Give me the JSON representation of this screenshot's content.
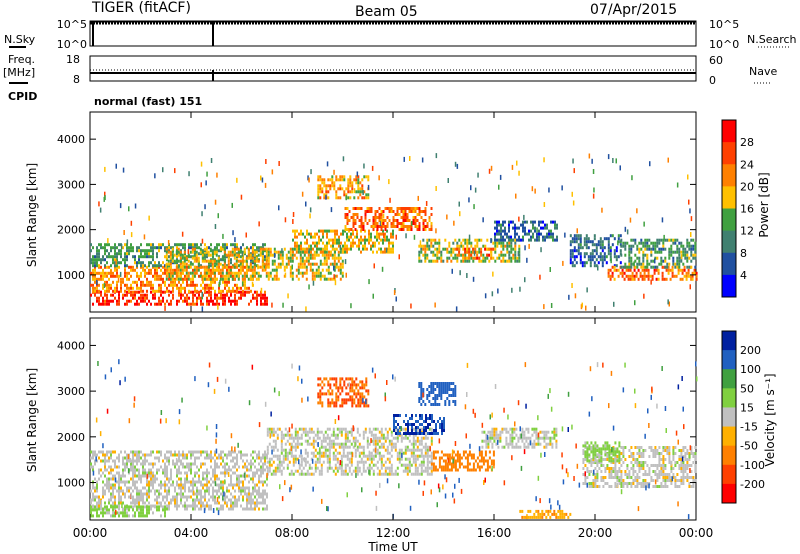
{
  "header": {
    "radar": "TIGER (fitACF)",
    "beam": "Beam 05",
    "date": "07/Apr/2015"
  },
  "noise_panel": {
    "left_label": "N.Sky",
    "right_label": "N.Search",
    "left_ticks": [
      "10^5",
      "10^0"
    ],
    "right_ticks": [
      "10^5",
      "10^0"
    ]
  },
  "freq_panel": {
    "left_label_line1": "Freq.",
    "left_label_line2": "[MHz]",
    "left_ticks": [
      "18",
      "8"
    ],
    "right_ticks": [
      "60",
      "0"
    ],
    "right_label": "Nave",
    "cpid_label": "CPID",
    "cpid_value": "normal (fast) 151"
  },
  "x_axis": {
    "label": "Time UT",
    "ticks": [
      "00:00",
      "04:00",
      "08:00",
      "12:00",
      "16:00",
      "20:00",
      "00:00"
    ]
  },
  "chart_data": [
    {
      "type": "heatmap",
      "name": "power",
      "ylabel": "Slant Range [km]",
      "xlabel": "Time UT",
      "xlim": [
        0,
        24
      ],
      "ylim": [
        180,
        4600
      ],
      "yticks": [
        "1000",
        "2000",
        "3000",
        "4000"
      ],
      "colorbar": {
        "label": "Power [dB]",
        "ticks": [
          "28",
          "24",
          "20",
          "16",
          "12",
          "8",
          "4"
        ],
        "colors": [
          "#ff0000",
          "#ff4000",
          "#ff8000",
          "#ffc000",
          "#40a040",
          "#408070",
          "#2050a0",
          "#0000ff"
        ]
      },
      "regions": [
        {
          "t0": 0.0,
          "t1": 7.0,
          "r0": 350,
          "r1": 650,
          "value": 28
        },
        {
          "t0": 0.0,
          "t1": 6.5,
          "r0": 650,
          "r1": 1200,
          "value": 22
        },
        {
          "t0": 0.0,
          "t1": 7.0,
          "r0": 1200,
          "r1": 1700,
          "value": 12
        },
        {
          "t0": 3.0,
          "t1": 10.0,
          "r0": 900,
          "r1": 1600,
          "value": 18
        },
        {
          "t0": 8.0,
          "t1": 12.0,
          "r0": 1500,
          "r1": 2000,
          "value": 18
        },
        {
          "t0": 10.0,
          "t1": 13.5,
          "r0": 2000,
          "r1": 2500,
          "value": 24
        },
        {
          "t0": 9.0,
          "t1": 11.0,
          "r0": 2700,
          "r1": 3200,
          "value": 20
        },
        {
          "t0": 13.0,
          "t1": 17.0,
          "r0": 1300,
          "r1": 1800,
          "value": 16
        },
        {
          "t0": 14.5,
          "t1": 16.0,
          "r0": 1400,
          "r1": 1600,
          "value": 24
        },
        {
          "t0": 16.0,
          "t1": 18.5,
          "r0": 1800,
          "r1": 2200,
          "value": 8
        },
        {
          "t0": 19.0,
          "t1": 21.0,
          "r0": 1200,
          "r1": 1900,
          "value": 8
        },
        {
          "t0": 20.5,
          "t1": 24.0,
          "r0": 900,
          "r1": 1200,
          "value": 24
        },
        {
          "t0": 21.0,
          "t1": 24.0,
          "r0": 1200,
          "r1": 1800,
          "value": 12
        }
      ]
    },
    {
      "type": "heatmap",
      "name": "velocity",
      "ylabel": "Slant Range [km]",
      "xlabel": "Time UT",
      "xlim": [
        0,
        24
      ],
      "ylim": [
        180,
        4600
      ],
      "yticks": [
        "1000",
        "2000",
        "3000",
        "4000"
      ],
      "colorbar": {
        "label": "Velocity [m s⁻¹]",
        "ticks": [
          "200",
          "100",
          "50",
          "15",
          "-15",
          "-50",
          "-100",
          "-200"
        ],
        "colors": [
          "#0020a0",
          "#2060c0",
          "#40a040",
          "#80d040",
          "#c0c0c0",
          "#ffb000",
          "#ff8000",
          "#ff4000",
          "#ff0000"
        ]
      },
      "regions": [
        {
          "t0": 0.0,
          "t1": 7.0,
          "r0": 400,
          "r1": 1700,
          "value": 0
        },
        {
          "t0": 0.0,
          "t1": 3.0,
          "r0": 300,
          "r1": 500,
          "value": 30
        },
        {
          "t0": 7.0,
          "t1": 13.5,
          "r0": 1200,
          "r1": 2200,
          "value": 0
        },
        {
          "t0": 9.0,
          "t1": 11.0,
          "r0": 2700,
          "r1": 3300,
          "value": -100
        },
        {
          "t0": 12.0,
          "t1": 14.0,
          "r0": 2100,
          "r1": 2500,
          "value": 200
        },
        {
          "t0": 13.0,
          "t1": 14.5,
          "r0": 2700,
          "r1": 3200,
          "value": 150
        },
        {
          "t0": 13.5,
          "t1": 16.0,
          "r0": 1300,
          "r1": 1700,
          "value": -80
        },
        {
          "t0": 15.5,
          "t1": 18.5,
          "r0": 1800,
          "r1": 2200,
          "value": 0
        },
        {
          "t0": 17.0,
          "t1": 19.0,
          "r0": 250,
          "r1": 400,
          "value": -40
        },
        {
          "t0": 19.5,
          "t1": 24.0,
          "r0": 900,
          "r1": 1800,
          "value": 0
        },
        {
          "t0": 19.5,
          "t1": 21.0,
          "r0": 1500,
          "r1": 1900,
          "value": 30
        }
      ]
    }
  ]
}
